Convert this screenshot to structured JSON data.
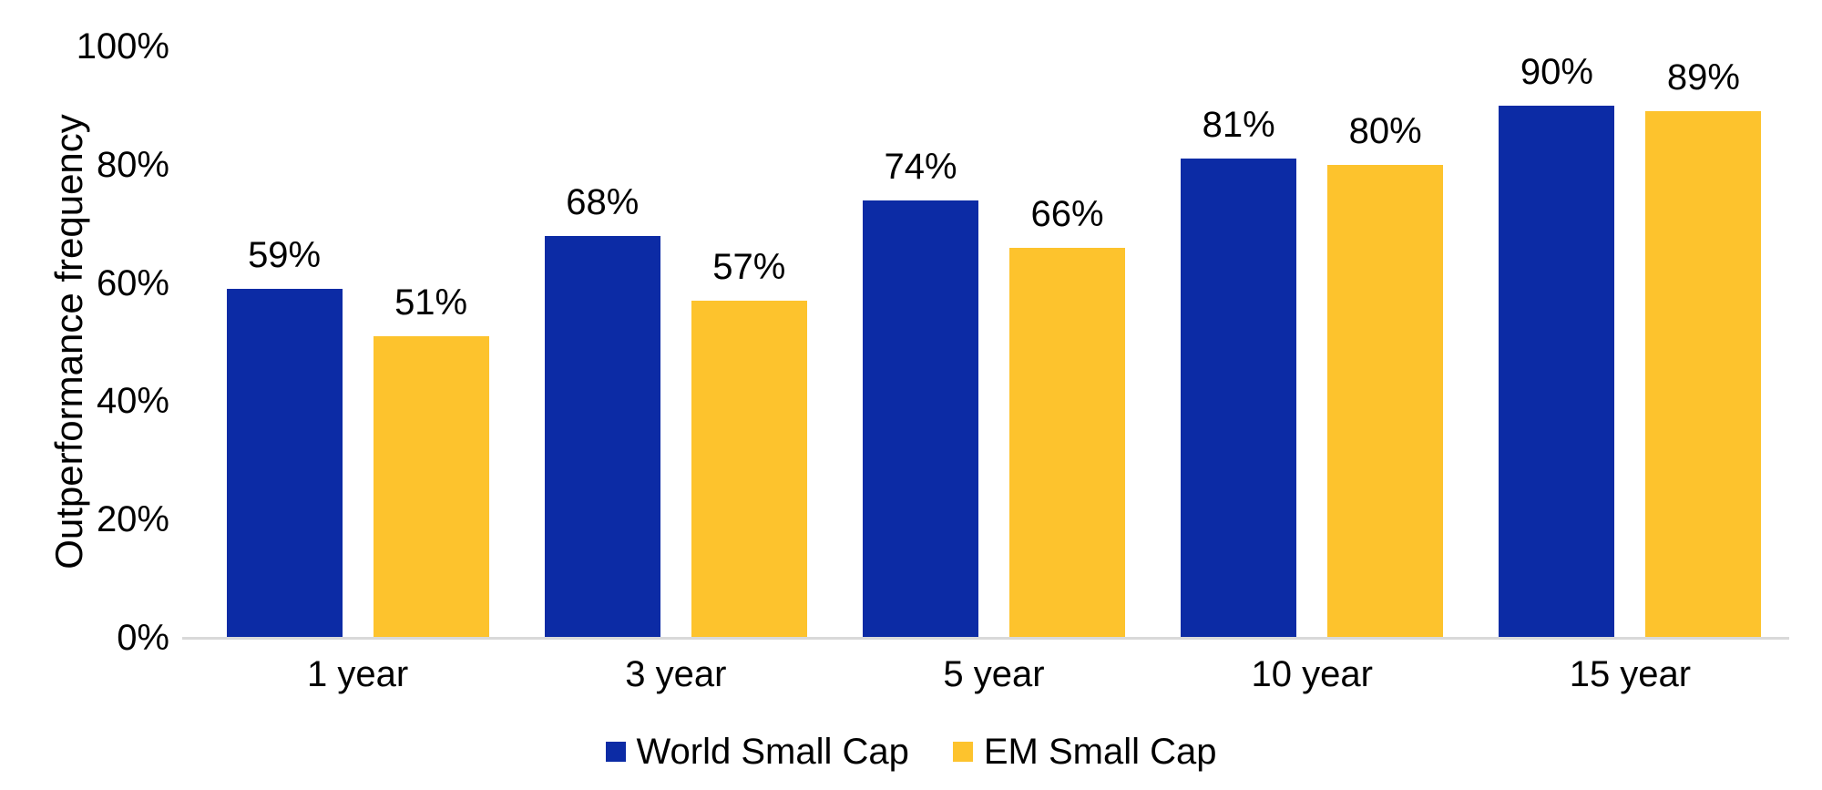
{
  "page": {
    "background": "#FFFFFF",
    "text_color": "#000000",
    "axis_line_color": "#D9D9D9"
  },
  "chart_data": {
    "type": "bar",
    "ylabel": "Outperformance frequency",
    "xlabel": "",
    "categories": [
      "1 year",
      "3 year",
      "5 year",
      "10 year",
      "15 year"
    ],
    "series": [
      {
        "name": "World Small Cap",
        "color": "#0C2BA5",
        "values": [
          59,
          68,
          74,
          81,
          90
        ]
      },
      {
        "name": "EM Small Cap",
        "color": "#FDC32D",
        "values": [
          51,
          57,
          66,
          80,
          89
        ]
      }
    ],
    "value_suffix": "%",
    "ylim": [
      0,
      100
    ],
    "y_ticks": [
      {
        "value": 0,
        "label": "0%"
      },
      {
        "value": 20,
        "label": "20%"
      },
      {
        "value": 40,
        "label": "40%"
      },
      {
        "value": 60,
        "label": "60%"
      },
      {
        "value": 80,
        "label": "80%"
      },
      {
        "value": 100,
        "label": "100%"
      }
    ],
    "grid": false,
    "legend_position": "bottom"
  }
}
